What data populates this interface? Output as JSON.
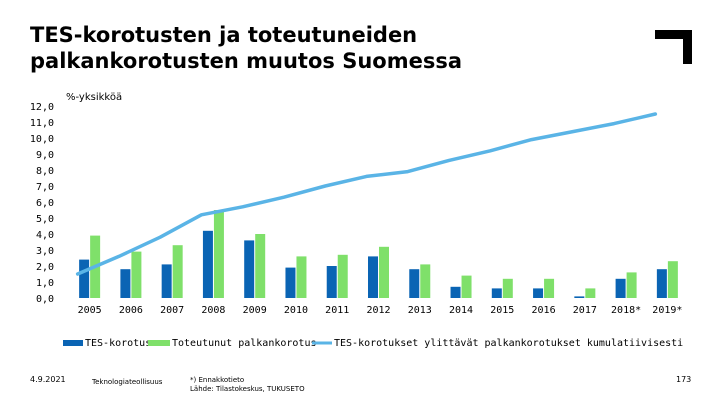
{
  "title_lines": [
    "TES-korotusten ja toteutuneiden",
    "palkankorotusten muutos Suomessa"
  ],
  "chart_data": {
    "type": "bar",
    "ylabel": "%-yksikköä",
    "ylim": [
      0,
      12
    ],
    "yticks": [
      "0,0",
      "1,0",
      "2,0",
      "3,0",
      "4,0",
      "5,0",
      "6,0",
      "7,0",
      "8,0",
      "9,0",
      "10,0",
      "11,0",
      "12,0"
    ],
    "categories": [
      "2005",
      "2006",
      "2007",
      "2008",
      "2009",
      "2010",
      "2011",
      "2012",
      "2013",
      "2014",
      "2015",
      "2016",
      "2017",
      "2018*",
      "2019*"
    ],
    "series": [
      {
        "name": "TES-korotus",
        "kind": "bar",
        "color": "#0a64b4",
        "values": [
          2.4,
          1.8,
          2.1,
          4.2,
          3.6,
          1.9,
          2.0,
          2.6,
          1.8,
          0.7,
          0.6,
          0.6,
          0.1,
          1.2,
          1.8
        ]
      },
      {
        "name": "Toteutunut palkankorotus",
        "kind": "bar",
        "color": "#7fe06a",
        "values": [
          3.9,
          2.9,
          3.3,
          5.5,
          4.0,
          2.6,
          2.7,
          3.2,
          2.1,
          1.4,
          1.2,
          1.2,
          0.6,
          1.6,
          2.3
        ]
      },
      {
        "name": "TES-korotukset ylittävät palkankorotukset kumulatiivisesti",
        "kind": "line",
        "color": "#5ab4e6",
        "values": [
          1.5,
          2.6,
          3.8,
          5.2,
          5.7,
          6.3,
          7.0,
          7.6,
          7.9,
          8.6,
          9.2,
          9.9,
          10.4,
          10.9,
          11.5
        ]
      }
    ]
  },
  "footer": {
    "date": "4.9.2021",
    "org": "Teknologiateollisuus",
    "note1": "*) Ennakkotieto",
    "note2": "Lähde: Tilastokeskus, TUKUSETO",
    "page": "173"
  }
}
